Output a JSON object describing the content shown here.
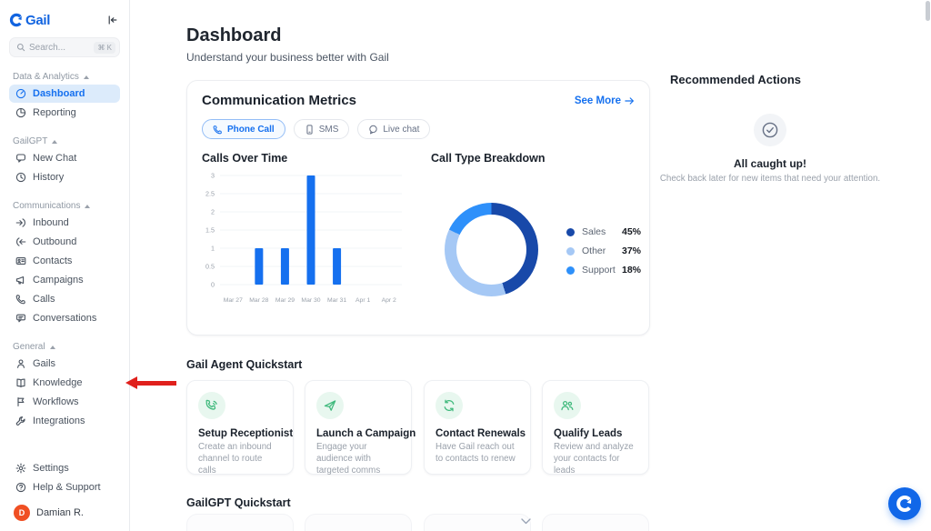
{
  "app": {
    "name": "Gail",
    "accent_color": "#1570EF",
    "logo_color": "#1264E0"
  },
  "sidebar": {
    "search": {
      "placeholder": "Search...",
      "shortcut": "⌘ K"
    },
    "sections": [
      {
        "label": "Data & Analytics",
        "items": [
          {
            "label": "Dashboard",
            "icon": "dashboard-icon",
            "active": true
          },
          {
            "label": "Reporting",
            "icon": "reporting-icon"
          }
        ]
      },
      {
        "label": "GailGPT",
        "items": [
          {
            "label": "New Chat",
            "icon": "chat-bubble-icon"
          },
          {
            "label": "History",
            "icon": "clock-icon"
          }
        ]
      },
      {
        "label": "Communications",
        "items": [
          {
            "label": "Inbound",
            "icon": "inbound-icon"
          },
          {
            "label": "Outbound",
            "icon": "outbound-icon"
          },
          {
            "label": "Contacts",
            "icon": "contacts-icon"
          },
          {
            "label": "Campaigns",
            "icon": "megaphone-icon"
          },
          {
            "label": "Calls",
            "icon": "phone-icon"
          },
          {
            "label": "Conversations",
            "icon": "conversation-icon"
          }
        ]
      },
      {
        "label": "General",
        "items": [
          {
            "label": "Gails",
            "icon": "person-icon"
          },
          {
            "label": "Knowledge",
            "icon": "book-icon",
            "pointer_arrow": true
          },
          {
            "label": "Workflows",
            "icon": "flag-icon"
          },
          {
            "label": "Integrations",
            "icon": "wrench-icon"
          }
        ]
      }
    ],
    "footer_items": [
      {
        "label": "Settings",
        "icon": "gear-icon"
      },
      {
        "label": "Help & Support",
        "icon": "help-icon"
      }
    ],
    "user": {
      "name": "Damian R.",
      "avatar_initial": "D",
      "avatar_color": "#F04F23"
    }
  },
  "header": {
    "title": "Dashboard",
    "subtitle": "Understand your business better with Gail"
  },
  "metrics_card": {
    "title": "Communication Metrics",
    "see_more_label": "See More",
    "tabs": [
      {
        "label": "Phone Call",
        "active": true
      },
      {
        "label": "SMS",
        "active": false
      },
      {
        "label": "Live chat",
        "active": false
      }
    ]
  },
  "chart_data": [
    {
      "type": "bar",
      "title": "Calls Over Time",
      "categories": [
        "Mar 27",
        "Mar 28",
        "Mar 29",
        "Mar 30",
        "Mar 31",
        "Apr 1",
        "Apr 2"
      ],
      "values": [
        0,
        1,
        1,
        3,
        1,
        0,
        0
      ],
      "xlabel": "",
      "ylabel": "",
      "ylim": [
        0,
        3
      ],
      "yticks": [
        0,
        0.5,
        1,
        1.5,
        2,
        2.5,
        3
      ],
      "grid": true,
      "bar_color": "#1570EF"
    },
    {
      "type": "pie",
      "title": "Call Type Breakdown",
      "donut": true,
      "legend_position": "right",
      "slices": [
        {
          "label": "Sales",
          "value": 45,
          "color": "#1849A9"
        },
        {
          "label": "Other",
          "value": 37,
          "color": "#A5C8F5"
        },
        {
          "label": "Support",
          "value": 18,
          "color": "#2E90FA"
        }
      ]
    }
  ],
  "recommended": {
    "title": "Recommended Actions",
    "status": "All caught up!",
    "caption": "Check back later for new items that need your attention."
  },
  "quickstart": {
    "title": "Gail Agent Quickstart",
    "cards": [
      {
        "title": "Setup Receptionist",
        "desc": "Create an inbound channel to route calls",
        "icon": "phone-waves-icon"
      },
      {
        "title": "Launch a Campaign",
        "desc": "Engage your audience with targeted comms",
        "icon": "send-icon"
      },
      {
        "title": "Contact Renewals",
        "desc": "Have Gail reach out to contacts to renew",
        "icon": "refresh-icon"
      },
      {
        "title": "Qualify Leads",
        "desc": "Review and analyze your contacts for leads",
        "icon": "users-icon"
      }
    ]
  },
  "gailgpt_quickstart": {
    "title": "GailGPT Quickstart"
  }
}
